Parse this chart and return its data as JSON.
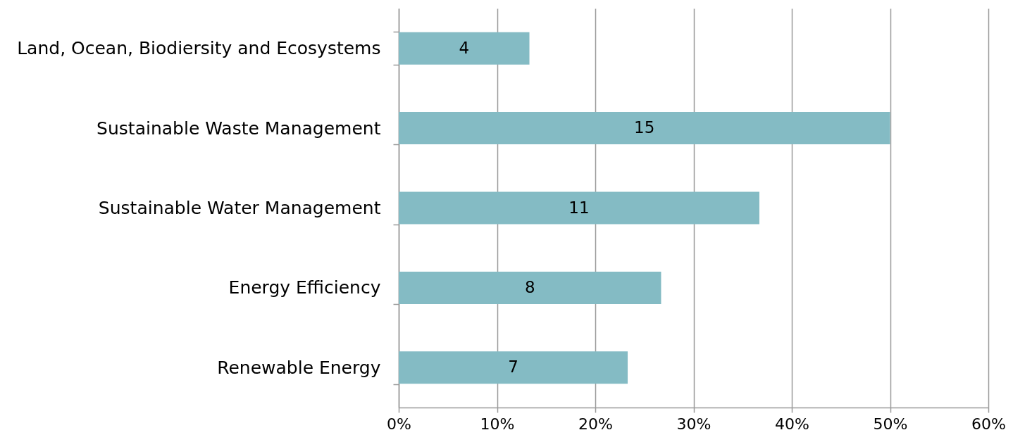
{
  "chart_data": {
    "type": "bar",
    "orientation": "horizontal",
    "categories": [
      "Land, Ocean, Biodiersity and Ecosystems",
      "Sustainable Waste Management",
      "Sustainable Water Management",
      "Energy Efficiency",
      "Renewable Energy"
    ],
    "values": [
      13.3,
      50,
      36.7,
      26.7,
      23.3
    ],
    "annotations": [
      "4",
      "15",
      "11",
      "8",
      "7"
    ],
    "color": "#84bbc4",
    "xlim": [
      0,
      60
    ],
    "xticks": [
      {
        "value": 0,
        "label": "0%"
      },
      {
        "value": 10,
        "label": "10%"
      },
      {
        "value": 20,
        "label": "20%"
      },
      {
        "value": 30,
        "label": "30%"
      },
      {
        "value": 40,
        "label": "40%"
      },
      {
        "value": 50,
        "label": "50%"
      },
      {
        "value": 60,
        "label": "60%"
      }
    ],
    "grid": "x"
  }
}
